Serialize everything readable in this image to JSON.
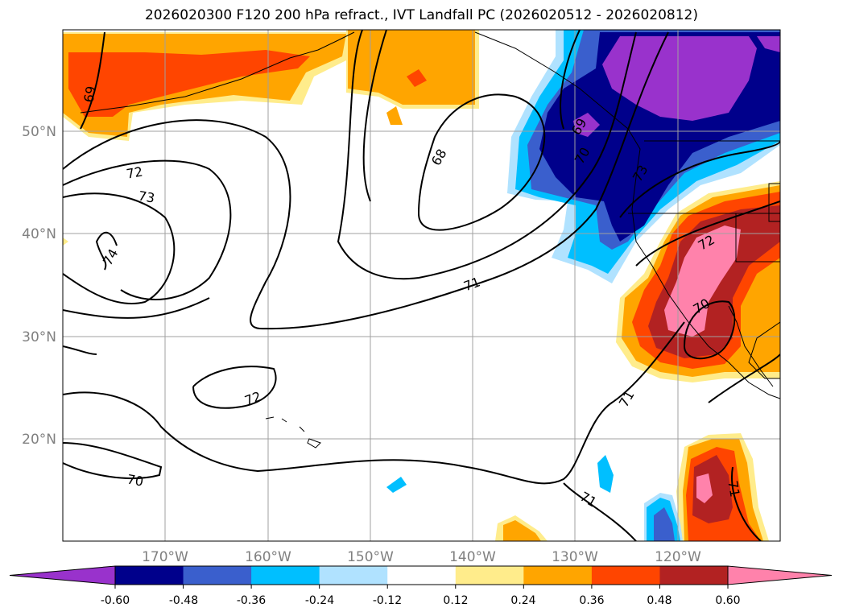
{
  "title": "2026020300 F120 200 hPa refract., IVT Landfall PC (2026020512 - 2026020812)",
  "lat_ticks": [
    "50°N",
    "40°N",
    "30°N",
    "20°N"
  ],
  "lon_ticks": [
    "170°W",
    "160°W",
    "150°W",
    "140°W",
    "130°W",
    "120°W"
  ],
  "contour_labels": [
    "69",
    "72",
    "73",
    "74",
    "68",
    "69",
    "70",
    "73",
    "71",
    "72",
    "70",
    "72",
    "70",
    "71",
    "71",
    "71"
  ],
  "colorbar": {
    "labels": [
      "-0.60",
      "-0.48",
      "-0.36",
      "-0.24",
      "-0.12",
      "0.12",
      "0.24",
      "0.36",
      "0.48",
      "0.60"
    ],
    "colors": [
      "#9932cc",
      "#00008b",
      "#3a5fcd",
      "#00bfff",
      "#b0e2ff",
      "#ffffff",
      "#ffec8b",
      "#ffa500",
      "#ff4500",
      "#b22222",
      "#ff82ab"
    ]
  }
}
